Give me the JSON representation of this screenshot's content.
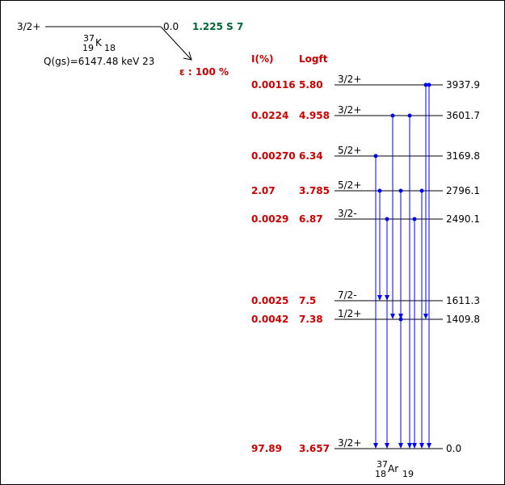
{
  "parent": {
    "spin": "3/2+",
    "energy": "0.0",
    "halflife": "1.225 S 7",
    "mass": "37",
    "z": "19",
    "symbol": "K",
    "n": "18",
    "qvalue": "Q(gs)=6147.48 keV 23"
  },
  "decay_mode": "ε : 100 %",
  "headers": {
    "intensity": "I(%)",
    "logft": "Logft"
  },
  "daughter": {
    "mass": "37",
    "z": "18",
    "symbol": "Ar",
    "n": "19"
  },
  "levels": [
    {
      "energy": "3937.9",
      "spin": "3/2+",
      "intensity": "0.00116",
      "logft": "5.80"
    },
    {
      "energy": "3601.7",
      "spin": "3/2+",
      "intensity": "0.0224",
      "logft": "4.958"
    },
    {
      "energy": "3169.8",
      "spin": "5/2+",
      "intensity": "0.00270",
      "logft": "6.34"
    },
    {
      "energy": "2796.1",
      "spin": "5/2+",
      "intensity": "2.07",
      "logft": "3.785"
    },
    {
      "energy": "2490.1",
      "spin": "3/2-",
      "intensity": "0.0029",
      "logft": "6.87"
    },
    {
      "energy": "1611.3",
      "spin": "7/2-",
      "intensity": "0.0025",
      "logft": "7.5"
    },
    {
      "energy": "1409.8",
      "spin": "1/2+",
      "intensity": "0.0042",
      "logft": "7.38"
    },
    {
      "energy": "0.0",
      "spin": "3/2+",
      "intensity": "97.89",
      "logft": "3.657"
    }
  ],
  "gammas": [
    {
      "from": "3937.9",
      "to": "0.0"
    },
    {
      "from": "3937.9",
      "to": "1409.8"
    },
    {
      "from": "3601.7",
      "to": "0.0"
    },
    {
      "from": "3601.7",
      "to": "1409.8"
    },
    {
      "from": "3169.8",
      "to": "0.0"
    },
    {
      "from": "2796.1",
      "to": "0.0"
    },
    {
      "from": "2796.1",
      "to": "1409.8"
    },
    {
      "from": "2796.1",
      "to": "1611.3"
    },
    {
      "from": "2490.1",
      "to": "0.0"
    },
    {
      "from": "2490.1",
      "to": "1611.3"
    }
  ]
}
